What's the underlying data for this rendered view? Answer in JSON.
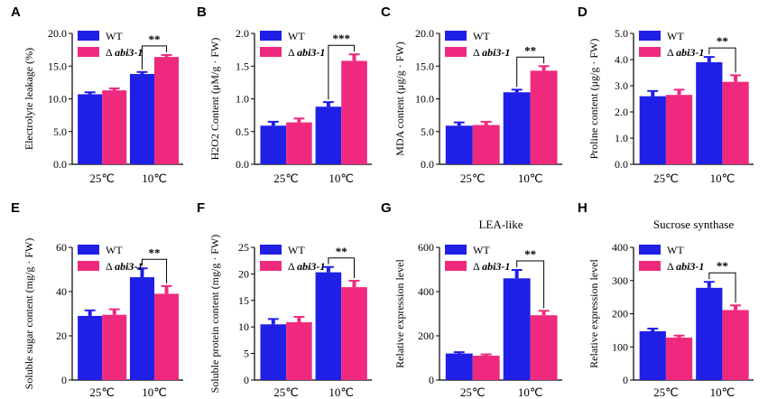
{
  "colors": {
    "wt": "#1f1fe6",
    "mutant": "#ef2a7e"
  },
  "legend": {
    "wt": "WT",
    "mutant_prefix": "Δ",
    "mutant": "abi3-1"
  },
  "categories": [
    "25℃",
    "10℃"
  ],
  "chart_data": [
    {
      "type": "bar",
      "panel": "A",
      "title": "",
      "ylabel": "Electrolyte leakage (%)",
      "ylim": [
        0,
        20
      ],
      "yticks": [
        "0.0",
        "5.0",
        "10.0",
        "15.0",
        "20.0"
      ],
      "categories": [
        "25℃",
        "10℃"
      ],
      "series": [
        {
          "name": "WT",
          "values": [
            10.7,
            13.8
          ],
          "errors": [
            0.3,
            0.3
          ]
        },
        {
          "name": "Δabi3-1",
          "values": [
            11.3,
            16.4
          ],
          "errors": [
            0.3,
            0.3
          ]
        }
      ],
      "significance": {
        "category": "10℃",
        "label": "**"
      }
    },
    {
      "type": "bar",
      "panel": "B",
      "title": "",
      "ylabel": "H2O2 Content (μM/g · FW)",
      "ylim": [
        0,
        2
      ],
      "yticks": [
        "0.0",
        "0.5",
        "1.0",
        "1.5",
        "2.0"
      ],
      "categories": [
        "25℃",
        "10℃"
      ],
      "series": [
        {
          "name": "WT",
          "values": [
            0.59,
            0.88
          ],
          "errors": [
            0.06,
            0.07
          ]
        },
        {
          "name": "Δabi3-1",
          "values": [
            0.64,
            1.58
          ],
          "errors": [
            0.06,
            0.1
          ]
        }
      ],
      "significance": {
        "category": "10℃",
        "label": "***"
      }
    },
    {
      "type": "bar",
      "panel": "C",
      "title": "",
      "ylabel": "MDA content (μg/g · FW)",
      "ylim": [
        0,
        20
      ],
      "yticks": [
        "0.0",
        "5.0",
        "10.0",
        "15.0",
        "20.0"
      ],
      "categories": [
        "25℃",
        "10℃"
      ],
      "series": [
        {
          "name": "WT",
          "values": [
            5.9,
            11.0
          ],
          "errors": [
            0.5,
            0.4
          ]
        },
        {
          "name": "Δabi3-1",
          "values": [
            6.0,
            14.3
          ],
          "errors": [
            0.5,
            0.7
          ]
        }
      ],
      "significance": {
        "category": "10℃",
        "label": "**"
      }
    },
    {
      "type": "bar",
      "panel": "D",
      "title": "",
      "ylabel": "Proline content (μg/g · FW)",
      "ylim": [
        0,
        5
      ],
      "yticks": [
        "0.0",
        "1.0",
        "2.0",
        "3.0",
        "4.0",
        "5.0"
      ],
      "categories": [
        "25℃",
        "10℃"
      ],
      "series": [
        {
          "name": "WT",
          "values": [
            2.6,
            3.9
          ],
          "errors": [
            0.2,
            0.2
          ]
        },
        {
          "name": "Δabi3-1",
          "values": [
            2.65,
            3.15
          ],
          "errors": [
            0.2,
            0.25
          ]
        }
      ],
      "significance": {
        "category": "10℃",
        "label": "**"
      }
    },
    {
      "type": "bar",
      "panel": "E",
      "title": "",
      "ylabel": "Soluble sugar content (mg/g · FW)",
      "ylim": [
        0,
        60
      ],
      "yticks": [
        "0",
        "20",
        "40",
        "60"
      ],
      "categories": [
        "25℃",
        "10℃"
      ],
      "series": [
        {
          "name": "WT",
          "values": [
            29,
            46.5
          ],
          "errors": [
            2.5,
            4
          ]
        },
        {
          "name": "Δabi3-1",
          "values": [
            29.5,
            39
          ],
          "errors": [
            2.5,
            3.5
          ]
        }
      ],
      "significance": {
        "category": "10℃",
        "label": "**"
      }
    },
    {
      "type": "bar",
      "panel": "F",
      "title": "",
      "ylabel": "Soluble protein content (mg/g · FW)",
      "ylim": [
        0,
        25
      ],
      "yticks": [
        "0",
        "5",
        "10",
        "15",
        "20",
        "25"
      ],
      "categories": [
        "25℃",
        "10℃"
      ],
      "series": [
        {
          "name": "WT",
          "values": [
            10.5,
            20.3
          ],
          "errors": [
            1,
            1
          ]
        },
        {
          "name": "Δabi3-1",
          "values": [
            10.9,
            17.5
          ],
          "errors": [
            1,
            1.2
          ]
        }
      ],
      "significance": {
        "category": "10℃",
        "label": "**"
      }
    },
    {
      "type": "bar",
      "panel": "G",
      "title": "LEA-like",
      "ylabel": "Relative expression level",
      "ylim": [
        0,
        600
      ],
      "yticks": [
        "0",
        "200",
        "400",
        "600"
      ],
      "categories": [
        "25℃",
        "10℃"
      ],
      "series": [
        {
          "name": "WT",
          "values": [
            120,
            460
          ],
          "errors": [
            6,
            38
          ]
        },
        {
          "name": "Δabi3-1",
          "values": [
            110,
            293
          ],
          "errors": [
            6,
            20
          ]
        }
      ],
      "significance": {
        "category": "10℃",
        "label": "**"
      }
    },
    {
      "type": "bar",
      "panel": "H",
      "title": "Sucrose synthase",
      "ylabel": "Relative expression level",
      "ylim": [
        0,
        400
      ],
      "yticks": [
        "0",
        "100",
        "200",
        "300",
        "400"
      ],
      "categories": [
        "25℃",
        "10℃"
      ],
      "series": [
        {
          "name": "WT",
          "values": [
            147,
            278
          ],
          "errors": [
            8,
            18
          ]
        },
        {
          "name": "Δabi3-1",
          "values": [
            128,
            211
          ],
          "errors": [
            6,
            14
          ]
        }
      ],
      "significance": {
        "category": "10℃",
        "label": "**"
      }
    }
  ]
}
